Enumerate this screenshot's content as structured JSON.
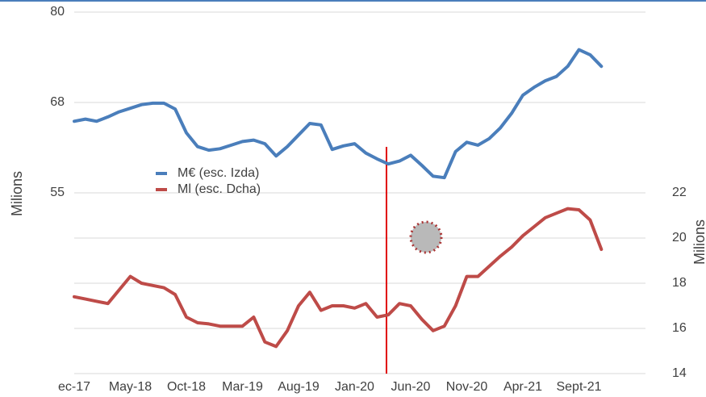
{
  "chart_data": {
    "type": "line",
    "y_label": "Milions",
    "y2_label": "Milions",
    "categories": [
      "ec-17",
      null,
      null,
      null,
      null,
      "May-18",
      null,
      null,
      null,
      null,
      "Oct-18",
      null,
      null,
      null,
      null,
      "Mar-19",
      null,
      null,
      null,
      null,
      "Aug-19",
      null,
      null,
      null,
      null,
      "Jan-20",
      null,
      null,
      null,
      null,
      "Jun-20",
      null,
      null,
      null,
      null,
      "Nov-20",
      null,
      null,
      null,
      null,
      "Apr-21",
      null,
      null,
      null,
      null,
      "Sept-21",
      null,
      null
    ],
    "series": [
      {
        "name": "M€ (esc. Izda)",
        "color": "#4a7ebb",
        "axis": "y",
        "values": [
          64.9,
          65.2,
          64.9,
          65.5,
          66.2,
          66.7,
          67.2,
          67.4,
          67.4,
          66.6,
          63.3,
          61.4,
          60.9,
          61.1,
          61.6,
          62.1,
          62.3,
          61.8,
          60.1,
          61.4,
          63.0,
          64.6,
          64.4,
          61.0,
          61.5,
          61.8,
          60.5,
          59.7,
          59.0,
          59.4,
          60.2,
          58.8,
          57.3,
          57.1,
          60.7,
          62.0,
          61.6,
          62.5,
          64.0,
          66.0,
          68.5,
          69.6,
          70.5,
          71.1,
          72.5,
          74.8,
          74.1,
          72.5
        ]
      },
      {
        "name": "Ml (esc. Dcha)",
        "color": "#be4b48",
        "axis": "y2",
        "values": [
          17.4,
          17.3,
          17.2,
          17.1,
          17.7,
          18.3,
          18.0,
          17.9,
          17.8,
          17.5,
          16.5,
          16.25,
          16.2,
          16.1,
          16.1,
          16.1,
          16.5,
          15.4,
          15.2,
          15.9,
          17.0,
          17.6,
          16.8,
          17.0,
          17.0,
          16.9,
          17.1,
          16.5,
          16.6,
          17.1,
          17.0,
          16.4,
          15.9,
          16.1,
          17.0,
          18.3,
          18.3,
          18.75,
          19.2,
          19.6,
          20.1,
          20.5,
          20.9,
          21.1,
          21.3,
          21.25,
          20.8,
          19.5
        ]
      }
    ],
    "ylim": [
      30,
      80
    ],
    "yticks": [
      80,
      {
        "value": 67.5,
        "label": "68"
      },
      55
    ],
    "y2lim": [
      14,
      30
    ],
    "y2ticks": [
      14,
      16,
      18,
      20,
      22
    ],
    "grid": true
  }
}
